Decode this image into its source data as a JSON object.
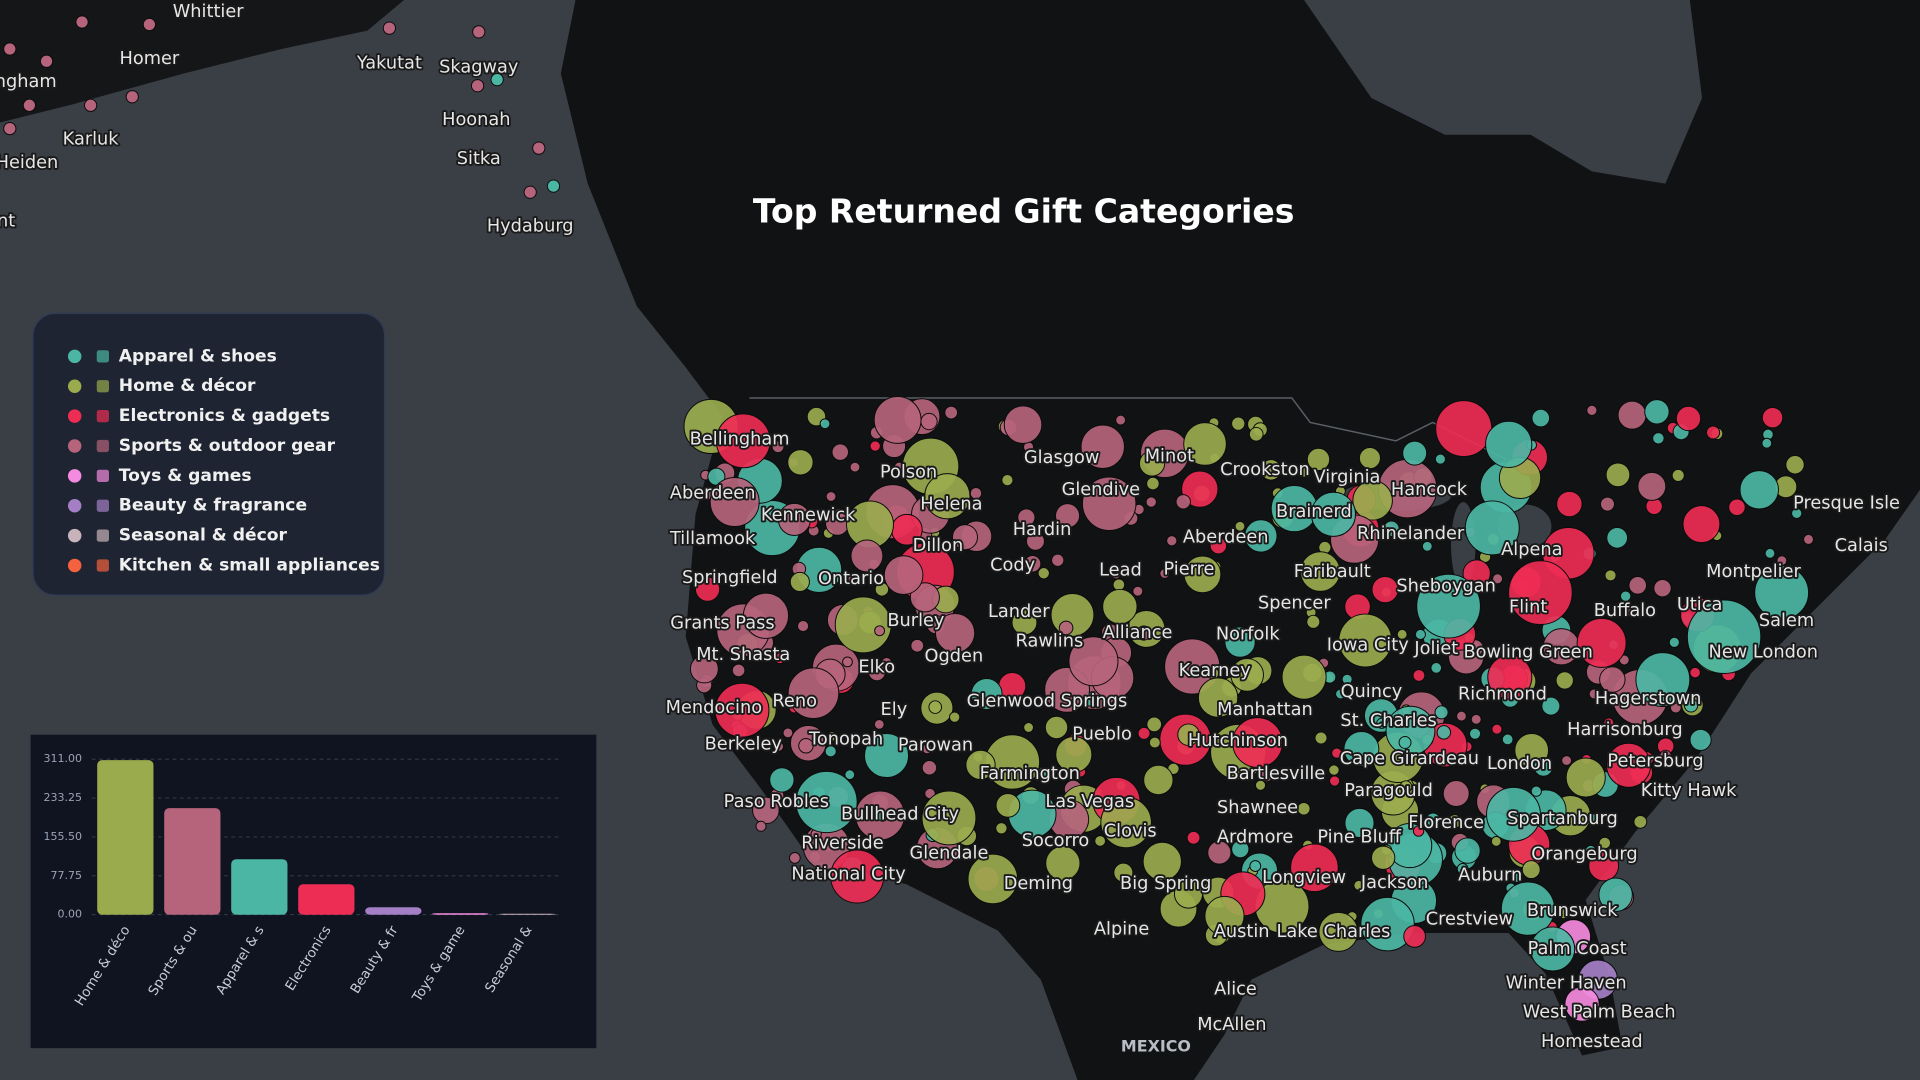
{
  "title": "Top Returned Gift Categories",
  "legend": {
    "items": [
      {
        "label": "Apparel & shoes",
        "color": "#4cb6a4"
      },
      {
        "label": "Home & décor",
        "color": "#9aab4e"
      },
      {
        "label": "Electronics & gadgets",
        "color": "#ee2d55"
      },
      {
        "label": "Sports & outdoor gear",
        "color": "#b5647c"
      },
      {
        "label": "Toys & games",
        "color": "#f58be0"
      },
      {
        "label": "Beauty & fragrance",
        "color": "#a47fc5"
      },
      {
        "label": "Seasonal & décor",
        "color": "#c9b3bb"
      },
      {
        "label": "Kitchen & small appliances",
        "color": "#f4623f"
      }
    ]
  },
  "chart_data": {
    "type": "bar",
    "categories": [
      "Home & déco",
      "Sports & ou",
      "Apparel & s",
      "Electronics",
      "Beauty & fr",
      "Toys & game",
      "Seasonal &"
    ],
    "values": [
      309,
      213,
      111,
      61,
      15,
      3,
      2
    ],
    "colors": [
      "#9aab4e",
      "#b5647c",
      "#4cb6a4",
      "#ee2d55",
      "#a47fc5",
      "#f58be0",
      "#c9b3bb"
    ],
    "ylim": [
      0,
      311
    ],
    "yticks": [
      {
        "value": 0,
        "label": "0.00"
      },
      {
        "value": 77.75,
        "label": "77.75"
      },
      {
        "value": 155.5,
        "label": "155.50"
      },
      {
        "value": 233.25,
        "label": "233.25"
      },
      {
        "value": 311,
        "label": "311.00"
      }
    ],
    "grid": true
  },
  "map": {
    "labels": [
      "Whittier",
      "Homer",
      "ngham",
      "Yakutat",
      "Skagway",
      "Hoonah",
      "Karluk",
      "Sitka",
      "Heiden",
      "nt",
      "Hydaburg",
      "Bellingham",
      "Polson",
      "Glasgow",
      "Minot",
      "Crookston",
      "Virginia",
      "Aberdeen",
      "Helena",
      "Glendive",
      "Hancock",
      "Presque Isle",
      "Kennewick",
      "Brainerd",
      "Tillamook",
      "Hardin",
      "Aberdeen",
      "Rhinelander",
      "Dillon",
      "Alpena",
      "Calais",
      "Springfield",
      "Ontario",
      "Cody",
      "Lead",
      "Pierre",
      "Faribault",
      "Montpelier",
      "Sheboygan",
      "Grants Pass",
      "Burley",
      "Lander",
      "Spencer",
      "Flint",
      "Buffalo",
      "Utica",
      "Salem",
      "Rawlins",
      "Alliance",
      "Norfolk",
      "Iowa City",
      "Joliet",
      "Bowling Green",
      "New London",
      "Mt. Shasta",
      "Ogden",
      "Elko",
      "Kearney",
      "Quincy",
      "Richmond",
      "Hagerstown",
      "Mendocino",
      "Reno",
      "Ely",
      "Glenwood Springs",
      "Manhattan",
      "St. Charles",
      "Harrisonburg",
      "Berkeley",
      "Tonopah",
      "Parowan",
      "Pueblo",
      "Hutchinson",
      "Cape Girardeau",
      "London",
      "Petersburg",
      "Farmington",
      "Bartlesville",
      "Paragould",
      "Kitty Hawk",
      "Paso Robles",
      "Las Vegas",
      "Shawnee",
      "Bullhead City",
      "Spartanburg",
      "Florence",
      "Clovis",
      "Socorro",
      "Ardmore",
      "Pine Bluff",
      "Riverside",
      "Glendale",
      "Orangeburg",
      "National City",
      "Deming",
      "Big Spring",
      "Longview",
      "Jackson",
      "Auburn",
      "Crestview",
      "Brunswick",
      "Alpine",
      "Austin",
      "Lake Charles",
      "Palm Coast",
      "Winter Haven",
      "Alice",
      "West Palm Beach",
      "McAllen",
      "Homestead"
    ],
    "country_label": "MEXICO"
  }
}
